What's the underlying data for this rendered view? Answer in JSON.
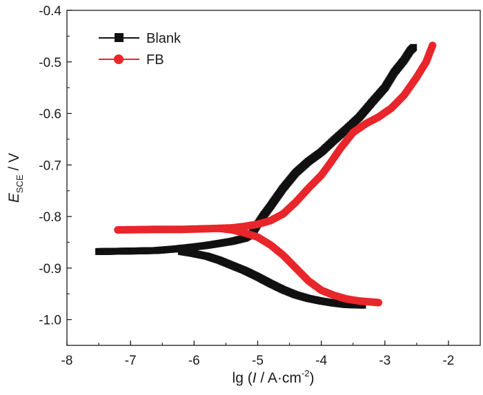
{
  "chart_data": {
    "type": "line",
    "title": "",
    "xlabel": {
      "prefix": "lg (",
      "italic": "I",
      "unit": " / A·cm",
      "sup": "-2",
      "suffix": ")"
    },
    "ylabel": {
      "italic": "E",
      "sub": "SCE",
      "unit": " / V"
    },
    "xlim": [
      -8,
      -1.5
    ],
    "ylim": [
      -1.05,
      -0.4
    ],
    "xticks": [
      -8,
      -7,
      -6,
      -5,
      -4,
      -3,
      -2
    ],
    "yticks": [
      -1.0,
      -0.9,
      -0.8,
      -0.7,
      -0.6,
      -0.5,
      -0.4
    ],
    "xtick_labels": [
      "-8",
      "-7",
      "-6",
      "-5",
      "-4",
      "-3",
      "-2"
    ],
    "ytick_labels": [
      "-1.0",
      "-0.9",
      "-0.8",
      "-0.7",
      "-0.6",
      "-0.5",
      "-0.4"
    ],
    "grid": false,
    "legend_position": "top-left",
    "series": [
      {
        "name": "Blank",
        "color": "#111111",
        "marker": "square",
        "branches": [
          [
            [
              -7.5,
              -0.868
            ],
            [
              -7.0,
              -0.867
            ],
            [
              -6.6,
              -0.866
            ],
            [
              -6.3,
              -0.863
            ],
            [
              -6.0,
              -0.859
            ],
            [
              -5.8,
              -0.856
            ],
            [
              -5.6,
              -0.852
            ],
            [
              -5.4,
              -0.848
            ],
            [
              -5.2,
              -0.842
            ],
            [
              -5.1,
              -0.835
            ],
            [
              -5.05,
              -0.825
            ],
            [
              -5.0,
              -0.815
            ],
            [
              -4.92,
              -0.8
            ],
            [
              -4.8,
              -0.78
            ],
            [
              -4.6,
              -0.745
            ],
            [
              -4.4,
              -0.715
            ],
            [
              -4.2,
              -0.693
            ],
            [
              -4.0,
              -0.675
            ],
            [
              -3.8,
              -0.652
            ],
            [
              -3.6,
              -0.63
            ],
            [
              -3.4,
              -0.607
            ],
            [
              -3.2,
              -0.578
            ],
            [
              -3.0,
              -0.55
            ],
            [
              -2.85,
              -0.52
            ],
            [
              -2.7,
              -0.497
            ],
            [
              -2.6,
              -0.478
            ],
            [
              -2.55,
              -0.472
            ]
          ],
          [
            [
              -6.2,
              -0.868
            ],
            [
              -6.0,
              -0.872
            ],
            [
              -5.8,
              -0.877
            ],
            [
              -5.6,
              -0.885
            ],
            [
              -5.4,
              -0.895
            ],
            [
              -5.2,
              -0.905
            ],
            [
              -5.0,
              -0.917
            ],
            [
              -4.8,
              -0.93
            ],
            [
              -4.6,
              -0.942
            ],
            [
              -4.4,
              -0.952
            ],
            [
              -4.2,
              -0.959
            ],
            [
              -4.0,
              -0.964
            ],
            [
              -3.8,
              -0.968
            ],
            [
              -3.6,
              -0.971
            ],
            [
              -3.35,
              -0.972
            ]
          ]
        ]
      },
      {
        "name": "FB",
        "color": "#e8262b",
        "marker": "circle",
        "branches": [
          [
            [
              -7.2,
              -0.826
            ],
            [
              -6.6,
              -0.825
            ],
            [
              -6.2,
              -0.825
            ],
            [
              -5.9,
              -0.824
            ],
            [
              -5.6,
              -0.823
            ],
            [
              -5.4,
              -0.822
            ],
            [
              -5.2,
              -0.819
            ],
            [
              -5.0,
              -0.815
            ],
            [
              -4.8,
              -0.808
            ],
            [
              -4.6,
              -0.795
            ],
            [
              -4.4,
              -0.772
            ],
            [
              -4.2,
              -0.745
            ],
            [
              -4.0,
              -0.72
            ],
            [
              -3.85,
              -0.695
            ],
            [
              -3.7,
              -0.668
            ],
            [
              -3.5,
              -0.637
            ],
            [
              -3.3,
              -0.62
            ],
            [
              -3.1,
              -0.607
            ],
            [
              -2.9,
              -0.59
            ],
            [
              -2.7,
              -0.565
            ],
            [
              -2.5,
              -0.53
            ],
            [
              -2.35,
              -0.5
            ],
            [
              -2.25,
              -0.468
            ]
          ],
          [
            [
              -5.6,
              -0.823
            ],
            [
              -5.4,
              -0.826
            ],
            [
              -5.2,
              -0.832
            ],
            [
              -5.0,
              -0.84
            ],
            [
              -4.8,
              -0.855
            ],
            [
              -4.6,
              -0.875
            ],
            [
              -4.4,
              -0.9
            ],
            [
              -4.2,
              -0.925
            ],
            [
              -4.0,
              -0.943
            ],
            [
              -3.8,
              -0.953
            ],
            [
              -3.6,
              -0.96
            ],
            [
              -3.4,
              -0.964
            ],
            [
              -3.2,
              -0.966
            ],
            [
              -3.1,
              -0.967
            ]
          ]
        ]
      }
    ]
  }
}
